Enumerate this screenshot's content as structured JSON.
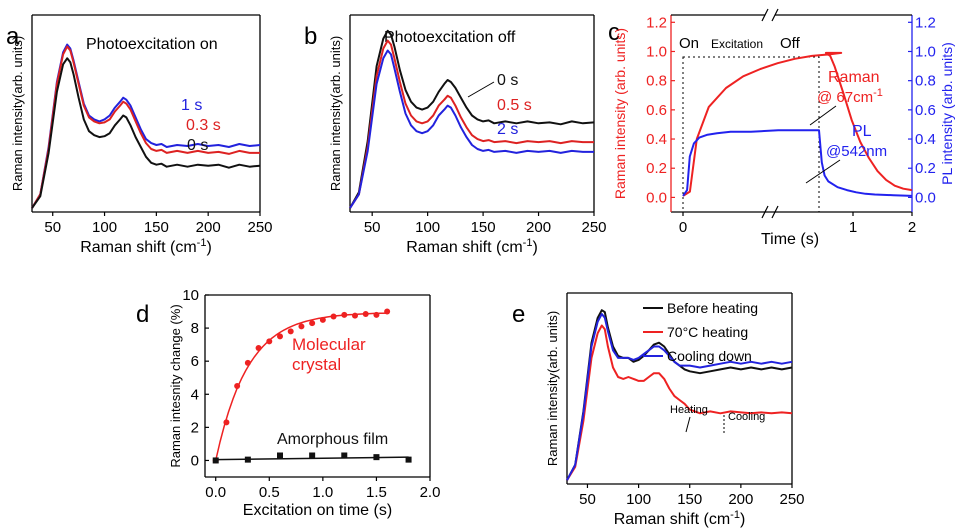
{
  "figure": {
    "panels": [
      {
        "id": "a",
        "letter": "a",
        "title": "Photoexcitation on"
      },
      {
        "id": "b",
        "letter": "b",
        "title": "Photoexcitation off"
      },
      {
        "id": "c",
        "letter": "c"
      },
      {
        "id": "d",
        "letter": "d"
      },
      {
        "id": "e",
        "letter": "e"
      }
    ]
  },
  "chart_data": [
    {
      "id": "a",
      "type": "line",
      "title": "Photoexcitation on",
      "xlabel": "Raman shift (cm-1)",
      "ylabel": "Raman intensity(arb. units)",
      "xlim": [
        30,
        250
      ],
      "ylim": [
        0,
        1
      ],
      "xticks": [
        50,
        100,
        150,
        200,
        250
      ],
      "y_ticks_shown": false,
      "series": [
        {
          "name": "1 s",
          "color": "#2222dd",
          "x": [
            30,
            38,
            46,
            54,
            60,
            64,
            67,
            70,
            75,
            80,
            85,
            90,
            95,
            100,
            105,
            110,
            115,
            118,
            121,
            125,
            130,
            135,
            140,
            145,
            150,
            155,
            160,
            170,
            180,
            190,
            200,
            210,
            220,
            230,
            240,
            250
          ],
          "y": [
            0.02,
            0.09,
            0.33,
            0.66,
            0.81,
            0.85,
            0.83,
            0.77,
            0.66,
            0.55,
            0.49,
            0.47,
            0.46,
            0.47,
            0.49,
            0.53,
            0.56,
            0.58,
            0.57,
            0.54,
            0.48,
            0.42,
            0.37,
            0.35,
            0.34,
            0.345,
            0.33,
            0.34,
            0.335,
            0.345,
            0.335,
            0.34,
            0.33,
            0.345,
            0.335,
            0.34
          ]
        },
        {
          "name": "0.3 s",
          "color": "#dd2222",
          "x": [
            30,
            38,
            46,
            54,
            60,
            64,
            67,
            70,
            75,
            80,
            85,
            90,
            95,
            100,
            105,
            110,
            115,
            118,
            121,
            125,
            130,
            135,
            140,
            145,
            150,
            155,
            160,
            170,
            180,
            190,
            200,
            210,
            220,
            230,
            240,
            250
          ],
          "y": [
            0.02,
            0.09,
            0.32,
            0.65,
            0.8,
            0.84,
            0.82,
            0.76,
            0.65,
            0.54,
            0.48,
            0.46,
            0.45,
            0.455,
            0.47,
            0.51,
            0.54,
            0.56,
            0.55,
            0.52,
            0.46,
            0.4,
            0.35,
            0.32,
            0.31,
            0.315,
            0.3,
            0.31,
            0.3,
            0.31,
            0.3,
            0.305,
            0.295,
            0.31,
            0.3,
            0.3
          ]
        },
        {
          "name": "0 s",
          "color": "#111111",
          "x": [
            30,
            38,
            46,
            54,
            60,
            64,
            67,
            70,
            75,
            80,
            85,
            90,
            95,
            100,
            105,
            110,
            115,
            118,
            121,
            125,
            130,
            135,
            140,
            145,
            150,
            155,
            160,
            170,
            180,
            190,
            200,
            210,
            220,
            230,
            240,
            250
          ],
          "y": [
            0.02,
            0.08,
            0.3,
            0.61,
            0.75,
            0.78,
            0.76,
            0.7,
            0.58,
            0.47,
            0.41,
            0.39,
            0.38,
            0.385,
            0.4,
            0.44,
            0.47,
            0.49,
            0.48,
            0.44,
            0.38,
            0.33,
            0.28,
            0.25,
            0.24,
            0.245,
            0.23,
            0.24,
            0.23,
            0.24,
            0.235,
            0.24,
            0.225,
            0.24,
            0.23,
            0.235
          ]
        }
      ]
    },
    {
      "id": "b",
      "type": "line",
      "title": "Photoexcitation off",
      "xlabel": "Raman shift (cm-1)",
      "ylabel": "Raman intensity(arb. units)",
      "xlim": [
        30,
        250
      ],
      "ylim": [
        0,
        1
      ],
      "xticks": [
        50,
        100,
        150,
        200,
        250
      ],
      "y_ticks_shown": false,
      "series": [
        {
          "name": "0 s",
          "color": "#111111",
          "x": [
            30,
            38,
            46,
            54,
            60,
            64,
            67,
            70,
            75,
            80,
            85,
            90,
            95,
            100,
            105,
            110,
            115,
            118,
            121,
            125,
            130,
            135,
            140,
            145,
            150,
            155,
            160,
            170,
            180,
            190,
            200,
            210,
            220,
            230,
            240,
            250
          ],
          "y": [
            0.02,
            0.1,
            0.36,
            0.74,
            0.88,
            0.92,
            0.9,
            0.84,
            0.72,
            0.62,
            0.56,
            0.53,
            0.52,
            0.53,
            0.56,
            0.61,
            0.65,
            0.67,
            0.66,
            0.63,
            0.58,
            0.53,
            0.49,
            0.47,
            0.46,
            0.465,
            0.45,
            0.46,
            0.45,
            0.46,
            0.45,
            0.455,
            0.445,
            0.46,
            0.45,
            0.455
          ]
        },
        {
          "name": "0.5 s",
          "color": "#dd2222",
          "x": [
            30,
            38,
            46,
            54,
            60,
            64,
            67,
            70,
            75,
            80,
            85,
            90,
            95,
            100,
            105,
            110,
            115,
            118,
            121,
            125,
            130,
            135,
            140,
            145,
            150,
            155,
            160,
            170,
            180,
            190,
            200,
            210,
            220,
            230,
            240,
            250
          ],
          "y": [
            0.02,
            0.09,
            0.33,
            0.69,
            0.83,
            0.87,
            0.85,
            0.78,
            0.66,
            0.55,
            0.49,
            0.46,
            0.45,
            0.46,
            0.49,
            0.54,
            0.57,
            0.59,
            0.58,
            0.54,
            0.48,
            0.43,
            0.39,
            0.37,
            0.36,
            0.365,
            0.355,
            0.36,
            0.35,
            0.36,
            0.355,
            0.36,
            0.35,
            0.36,
            0.355,
            0.355
          ]
        },
        {
          "name": "2 s",
          "color": "#2222dd",
          "x": [
            30,
            38,
            46,
            54,
            60,
            64,
            67,
            70,
            75,
            80,
            85,
            90,
            95,
            100,
            105,
            110,
            115,
            118,
            121,
            125,
            130,
            135,
            140,
            145,
            150,
            155,
            160,
            170,
            180,
            190,
            200,
            210,
            220,
            230,
            240,
            250
          ],
          "y": [
            0.02,
            0.09,
            0.31,
            0.65,
            0.78,
            0.82,
            0.8,
            0.73,
            0.61,
            0.5,
            0.44,
            0.41,
            0.4,
            0.41,
            0.44,
            0.49,
            0.52,
            0.54,
            0.53,
            0.49,
            0.43,
            0.38,
            0.34,
            0.32,
            0.31,
            0.315,
            0.305,
            0.31,
            0.3,
            0.31,
            0.305,
            0.31,
            0.3,
            0.31,
            0.305,
            0.305
          ]
        }
      ]
    },
    {
      "id": "c",
      "type": "line",
      "xlabel": "Time (s)",
      "ylabel": "Raman intensity (arb. units)",
      "ylabel_right": "PL intensity (arb. units)",
      "xticks": [
        0,
        1,
        2
      ],
      "yticks_left": [
        0.0,
        0.2,
        0.4,
        0.6,
        0.8,
        1.0,
        1.2
      ],
      "yticks_right": [
        0.0,
        0.2,
        0.4,
        0.6,
        0.8,
        1.0,
        1.2
      ],
      "ylim": [
        -0.1,
        1.25
      ],
      "axis_break": true,
      "annotations": [
        "On",
        "Excitation",
        "Off"
      ],
      "series": [
        {
          "name": "Raman",
          "label": "@ 67cm-1",
          "color": "#ee2222",
          "x": [
            0.0,
            0.04,
            0.08,
            0.15,
            0.25,
            0.35,
            0.45,
            0.55,
            0.65,
            0.75,
            0.85,
            0.92,
            1.0,
            1.05,
            1.1,
            1.2,
            1.3,
            1.4,
            1.5,
            1.6,
            1.7,
            1.8,
            1.9,
            2.0
          ],
          "y": [
            0.01,
            0.04,
            0.4,
            0.62,
            0.75,
            0.83,
            0.88,
            0.92,
            0.95,
            0.97,
            0.98,
            0.99,
            0.99,
            0.97,
            0.9,
            0.72,
            0.53,
            0.38,
            0.27,
            0.18,
            0.12,
            0.08,
            0.06,
            0.05
          ]
        },
        {
          "name": "PL",
          "label": "@542nm",
          "color": "#2222ee",
          "x": [
            0.0,
            0.03,
            0.05,
            0.08,
            0.12,
            0.18,
            0.25,
            0.35,
            0.5,
            0.7,
            0.9,
            1.0,
            1.03,
            1.06,
            1.1,
            1.2,
            1.3,
            1.4,
            1.5,
            1.6,
            1.8,
            2.0
          ],
          "y": [
            0.01,
            0.05,
            0.28,
            0.37,
            0.41,
            0.43,
            0.44,
            0.45,
            0.45,
            0.46,
            0.46,
            0.46,
            0.24,
            0.15,
            0.11,
            0.07,
            0.05,
            0.035,
            0.025,
            0.02,
            0.015,
            0.01
          ]
        }
      ]
    },
    {
      "id": "d",
      "type": "scatter",
      "xlabel": "Excitation on time (s)",
      "ylabel": "Raman intesnity change (%)",
      "xlim": [
        -0.1,
        2.0
      ],
      "ylim": [
        -1,
        10
      ],
      "xticks": [
        0.0,
        0.5,
        1.0,
        1.5,
        2.0
      ],
      "yticks": [
        0,
        2,
        4,
        6,
        8,
        10
      ],
      "series": [
        {
          "name": "Molecular crystal",
          "color": "#ee2222",
          "marker": "circle",
          "x": [
            0.0,
            0.1,
            0.2,
            0.3,
            0.4,
            0.5,
            0.6,
            0.7,
            0.8,
            0.9,
            1.0,
            1.1,
            1.2,
            1.3,
            1.4,
            1.5,
            1.6
          ],
          "y": [
            0.0,
            2.3,
            4.5,
            5.9,
            6.8,
            7.2,
            7.5,
            7.8,
            8.1,
            8.3,
            8.5,
            8.7,
            8.8,
            8.75,
            8.85,
            8.8,
            9.0
          ],
          "fit": "exponential"
        },
        {
          "name": "Amorphous film",
          "color": "#111111",
          "marker": "square",
          "x": [
            0.0,
            0.3,
            0.6,
            0.9,
            1.2,
            1.5,
            1.8
          ],
          "y": [
            0.0,
            0.05,
            0.3,
            0.3,
            0.3,
            0.2,
            0.05
          ],
          "fit": "linear"
        }
      ]
    },
    {
      "id": "e",
      "type": "line",
      "xlabel": "Raman shift (cm-1)",
      "ylabel": "Raman intensity(arb. units)",
      "xlim": [
        30,
        250
      ],
      "ylim": [
        0,
        1
      ],
      "xticks": [
        50,
        100,
        150,
        200,
        250
      ],
      "y_ticks_shown": false,
      "legend_position": "top-right",
      "annotations": [
        "Heating",
        "Cooling"
      ],
      "series": [
        {
          "name": "Before heating",
          "color": "#111111",
          "x": [
            30,
            38,
            46,
            54,
            60,
            64,
            67,
            70,
            75,
            80,
            85,
            90,
            95,
            100,
            105,
            110,
            115,
            120,
            125,
            130,
            135,
            140,
            145,
            150,
            160,
            170,
            180,
            190,
            200,
            210,
            220,
            230,
            240,
            250
          ],
          "y": [
            0.02,
            0.1,
            0.38,
            0.74,
            0.87,
            0.91,
            0.9,
            0.82,
            0.72,
            0.67,
            0.66,
            0.66,
            0.64,
            0.65,
            0.67,
            0.7,
            0.73,
            0.74,
            0.72,
            0.68,
            0.64,
            0.62,
            0.6,
            0.59,
            0.58,
            0.59,
            0.6,
            0.61,
            0.6,
            0.61,
            0.6,
            0.61,
            0.6,
            0.61
          ]
        },
        {
          "name": "70°C heating",
          "color": "#ee2222",
          "x": [
            30,
            38,
            46,
            54,
            60,
            64,
            67,
            70,
            75,
            80,
            85,
            90,
            95,
            100,
            105,
            110,
            115,
            120,
            125,
            130,
            135,
            140,
            145,
            150,
            155,
            160,
            170,
            180,
            190,
            200,
            210,
            220,
            230,
            240,
            250
          ],
          "y": [
            0.02,
            0.09,
            0.33,
            0.66,
            0.79,
            0.83,
            0.81,
            0.72,
            0.61,
            0.56,
            0.55,
            0.56,
            0.55,
            0.54,
            0.54,
            0.56,
            0.58,
            0.58,
            0.55,
            0.5,
            0.46,
            0.44,
            0.42,
            0.39,
            0.38,
            0.37,
            0.38,
            0.37,
            0.38,
            0.375,
            0.37,
            0.375,
            0.37,
            0.375,
            0.37
          ]
        },
        {
          "name": "Cooling down",
          "color": "#2222dd",
          "x": [
            30,
            38,
            46,
            54,
            60,
            64,
            67,
            70,
            75,
            80,
            85,
            90,
            95,
            100,
            105,
            110,
            115,
            120,
            125,
            130,
            135,
            140,
            145,
            150,
            160,
            170,
            180,
            190,
            200,
            210,
            220,
            230,
            240,
            250
          ],
          "y": [
            0.02,
            0.1,
            0.37,
            0.72,
            0.85,
            0.89,
            0.87,
            0.8,
            0.7,
            0.66,
            0.66,
            0.66,
            0.65,
            0.66,
            0.68,
            0.7,
            0.72,
            0.72,
            0.7,
            0.67,
            0.64,
            0.62,
            0.62,
            0.62,
            0.61,
            0.62,
            0.63,
            0.64,
            0.63,
            0.64,
            0.63,
            0.64,
            0.63,
            0.64
          ]
        }
      ]
    }
  ]
}
